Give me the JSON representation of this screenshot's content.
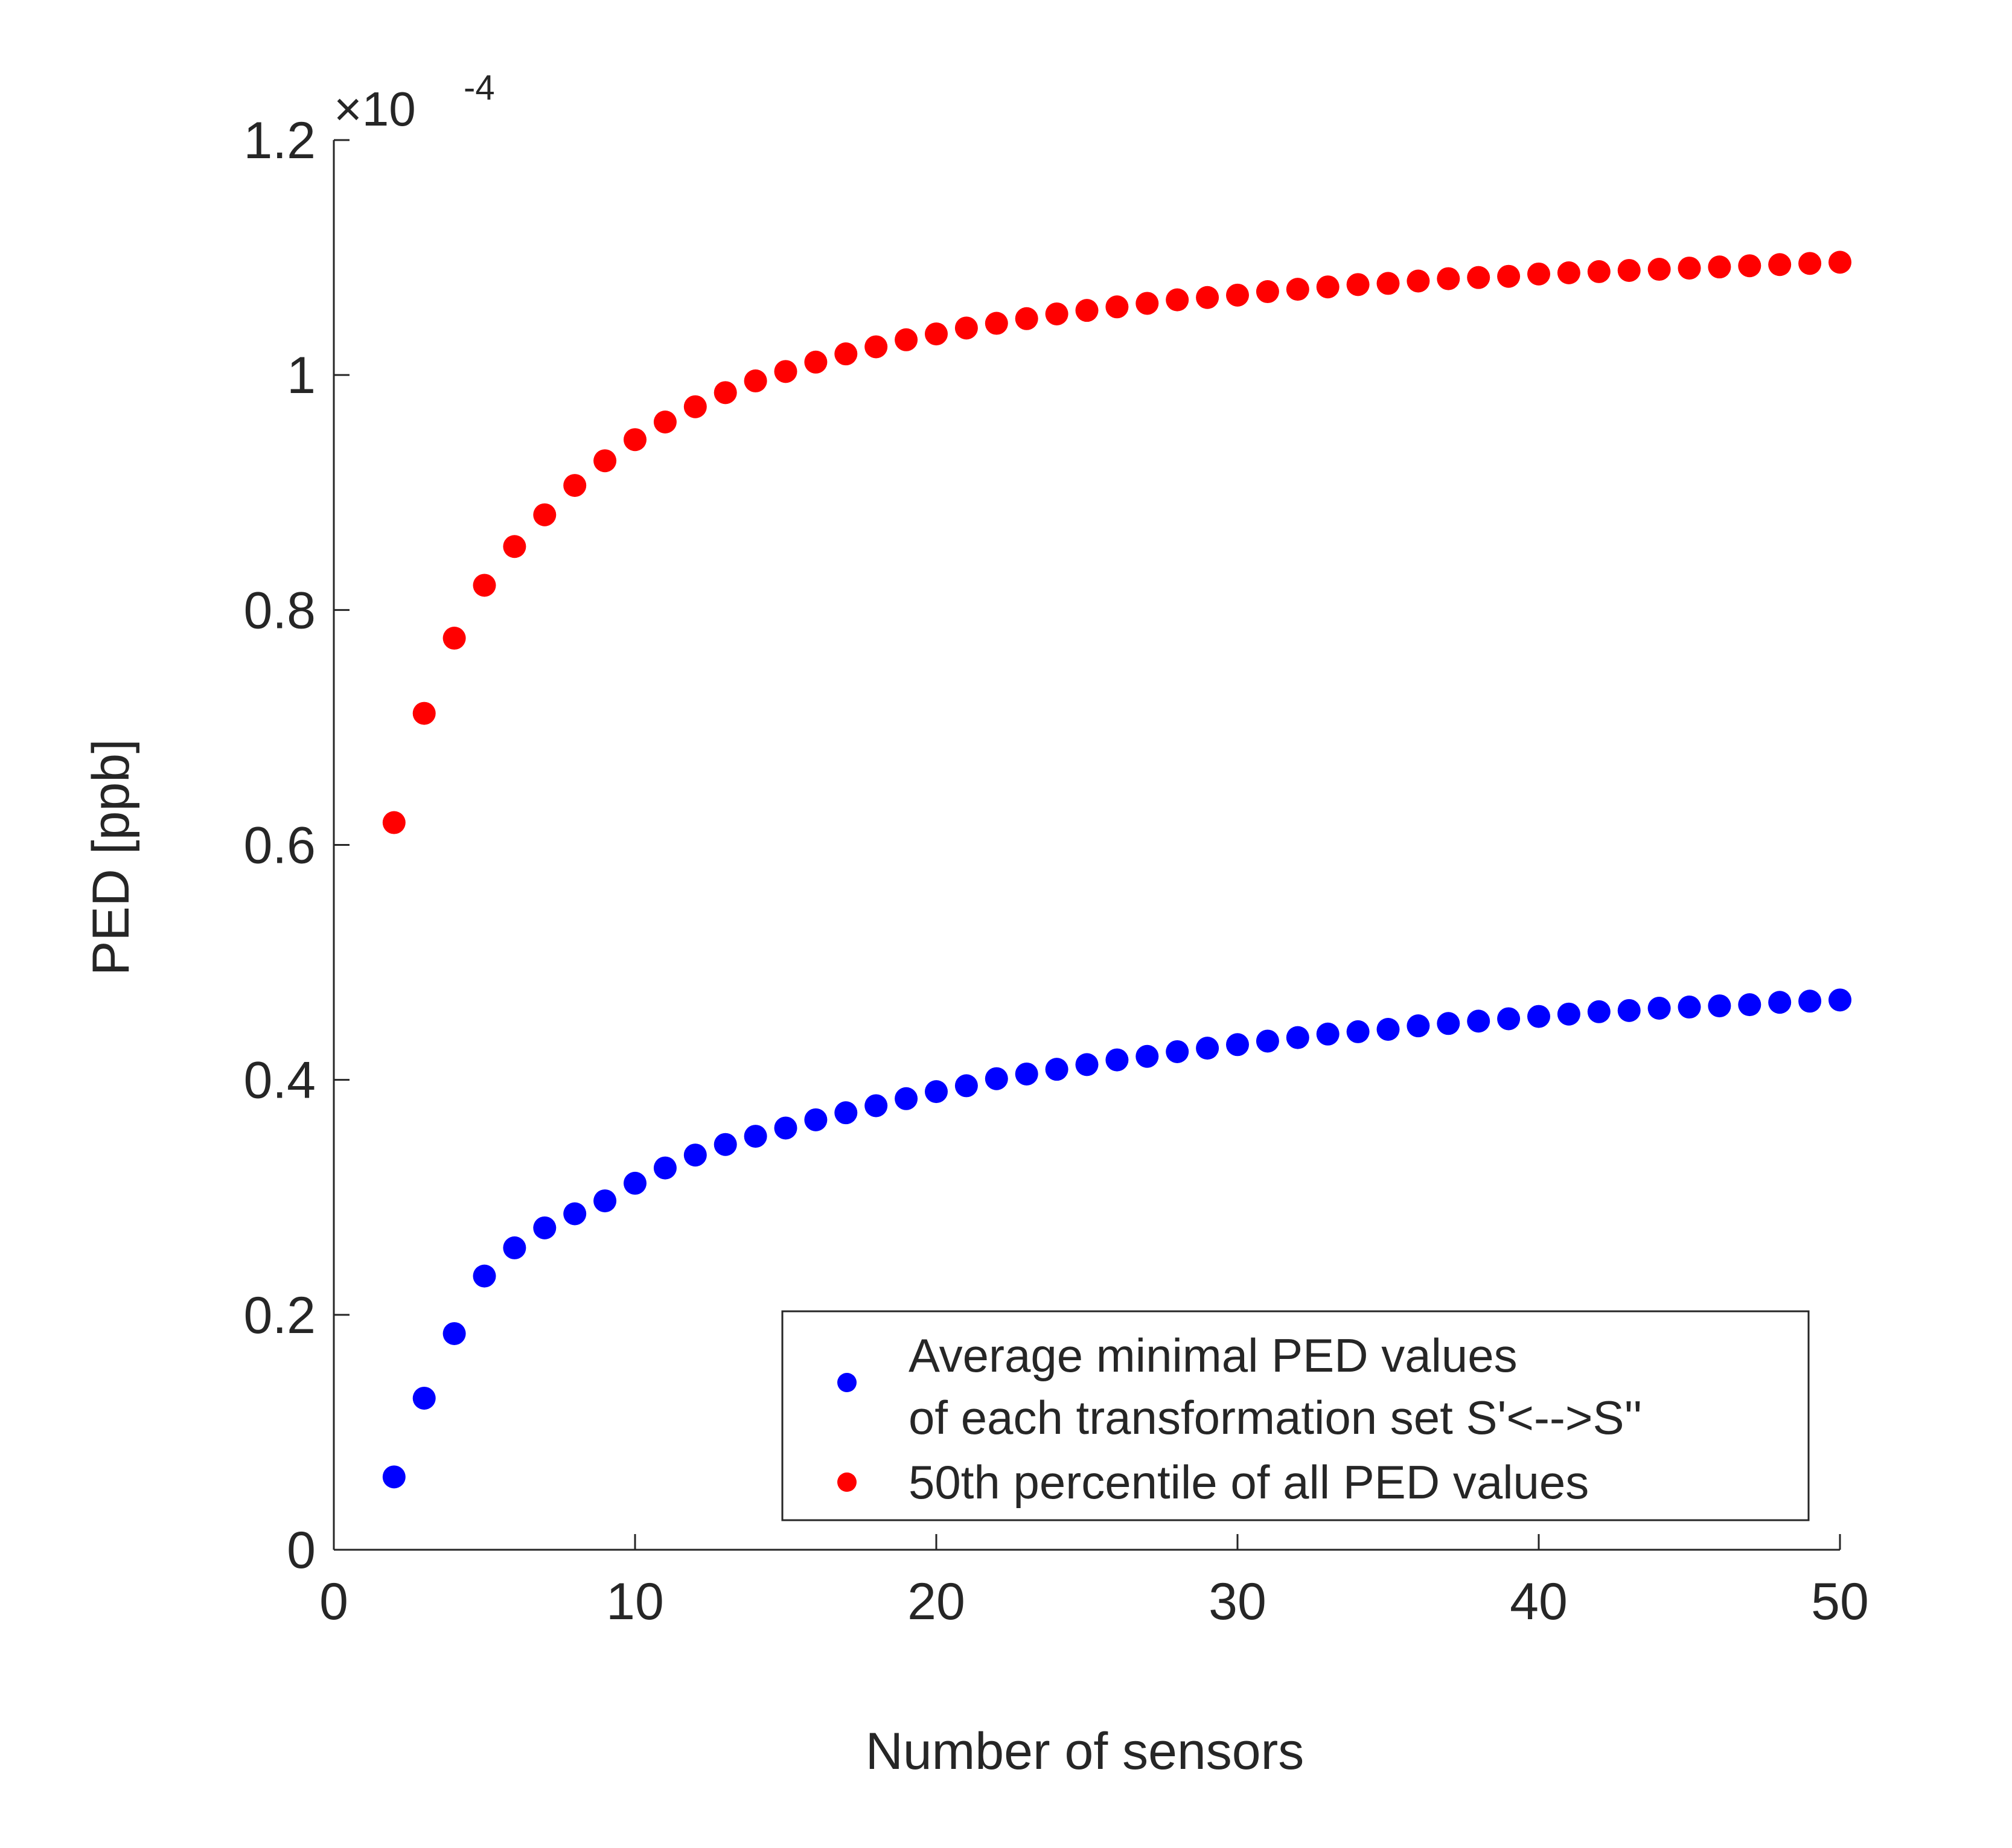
{
  "chart_data": {
    "type": "scatter",
    "xlabel": "Number of sensors",
    "ylabel": "PED [ppb]",
    "xlim": [
      0,
      50
    ],
    "ylim": [
      0,
      1.2
    ],
    "y_exponent_label": "×10",
    "y_exponent_power": "-4",
    "x_ticks": [
      "0",
      "10",
      "20",
      "30",
      "40",
      "50"
    ],
    "y_ticks": [
      "0",
      "0.2",
      "0.4",
      "0.6",
      "0.8",
      "1",
      "1.2"
    ],
    "grid": false,
    "legend_position": "bottom-right",
    "legend": {
      "entries": [
        {
          "label_line1": "Average minimal PED values",
          "label_line2": "of each transformation set S'<-->S''",
          "color": "#0000ff"
        },
        {
          "label_line1": "50th percentile of all PED values",
          "color": "#ff0000"
        }
      ]
    },
    "series": [
      {
        "color": "#0000ff",
        "x": [
          2,
          3,
          4,
          5,
          6,
          7,
          8,
          9,
          10,
          11,
          12,
          13,
          14,
          15,
          16,
          17,
          18,
          19,
          20,
          21,
          22,
          23,
          24,
          25,
          26,
          27,
          28,
          29,
          30,
          31,
          32,
          33,
          34,
          35,
          36,
          37,
          38,
          39,
          40,
          41,
          42,
          43,
          44,
          45,
          46,
          47,
          48,
          49,
          50
        ],
        "y": [
          0.062,
          0.129,
          0.184,
          0.233,
          0.257,
          0.274,
          0.286,
          0.297,
          0.312,
          0.325,
          0.336,
          0.345,
          0.352,
          0.359,
          0.366,
          0.372,
          0.378,
          0.384,
          0.39,
          0.395,
          0.401,
          0.405,
          0.409,
          0.413,
          0.417,
          0.42,
          0.424,
          0.427,
          0.43,
          0.433,
          0.436,
          0.439,
          0.441,
          0.443,
          0.446,
          0.448,
          0.45,
          0.452,
          0.454,
          0.456,
          0.458,
          0.459,
          0.461,
          0.462,
          0.463,
          0.464,
          0.466,
          0.467,
          0.468
        ]
      },
      {
        "color": "#ff0000",
        "x": [
          2,
          3,
          4,
          5,
          6,
          7,
          8,
          9,
          10,
          11,
          12,
          13,
          14,
          15,
          16,
          17,
          18,
          19,
          20,
          21,
          22,
          23,
          24,
          25,
          26,
          27,
          28,
          29,
          30,
          31,
          32,
          33,
          34,
          35,
          36,
          37,
          38,
          39,
          40,
          41,
          42,
          43,
          44,
          45,
          46,
          47,
          48,
          49,
          50
        ],
        "y": [
          0.619,
          0.712,
          0.776,
          0.821,
          0.854,
          0.881,
          0.906,
          0.927,
          0.945,
          0.96,
          0.973,
          0.985,
          0.995,
          1.003,
          1.011,
          1.018,
          1.024,
          1.03,
          1.035,
          1.04,
          1.044,
          1.048,
          1.052,
          1.055,
          1.058,
          1.061,
          1.064,
          1.066,
          1.068,
          1.071,
          1.073,
          1.075,
          1.077,
          1.078,
          1.08,
          1.082,
          1.083,
          1.084,
          1.086,
          1.087,
          1.088,
          1.089,
          1.09,
          1.091,
          1.092,
          1.093,
          1.094,
          1.095,
          1.096
        ]
      }
    ]
  }
}
